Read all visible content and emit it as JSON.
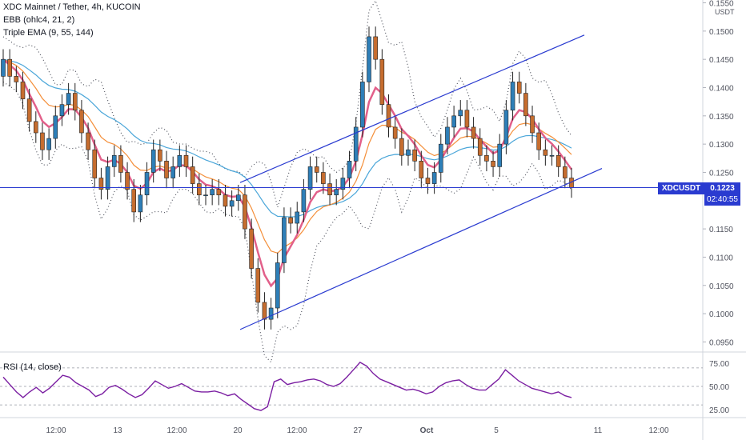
{
  "header": {
    "title": "XDC Mainnet / Tether, 4h, KUCOIN",
    "indicator_ebb": "EBB (ohlc4, 21, 2)",
    "indicator_ema": "Triple EMA (9, 55, 144)",
    "rsi_label": "RSI (14, close)"
  },
  "price_axis": {
    "currency": "USDT",
    "ticks": [
      "0.1550",
      "0.1500",
      "0.1450",
      "0.1400",
      "0.1350",
      "0.1300",
      "0.1250",
      "0.1150",
      "0.1100",
      "0.1050",
      "0.1000",
      "0.0950"
    ]
  },
  "rsi_axis": {
    "ticks": [
      "75.00",
      "50.00",
      "25.00"
    ]
  },
  "time_axis": {
    "ticks": [
      "12:00",
      "13",
      "12:00",
      "20",
      "12:00",
      "27",
      "Oct",
      "5",
      "11",
      "12:00"
    ]
  },
  "symbol_badge": {
    "label": "XDCUSDT",
    "price": "0.1223",
    "countdown": "02:40:55"
  },
  "colors": {
    "up": "#2e7fb8",
    "down": "#c66d2f",
    "ema_fast": "#e2608a",
    "ema_mid": "#f48f3a",
    "ema_slow": "#4aa6d9",
    "channel": "#2a3bd0",
    "rsi": "#7b1fa2",
    "badge": "#2a3bd0"
  },
  "chart_data": {
    "type": "candlestick",
    "title": "XDC Mainnet / Tether, 4h, KUCOIN",
    "current_price": 0.1223,
    "ylim": [
      0.0935,
      0.1555
    ],
    "closes": [
      0.145,
      0.142,
      0.141,
      0.138,
      0.134,
      0.132,
      0.129,
      0.131,
      0.135,
      0.137,
      0.139,
      0.136,
      0.132,
      0.129,
      0.124,
      0.122,
      0.126,
      0.128,
      0.125,
      0.122,
      0.118,
      0.121,
      0.125,
      0.129,
      0.127,
      0.124,
      0.126,
      0.128,
      0.126,
      0.123,
      0.121,
      0.121,
      0.122,
      0.121,
      0.119,
      0.12,
      0.121,
      0.115,
      0.108,
      0.102,
      0.099,
      0.101,
      0.109,
      0.117,
      0.116,
      0.118,
      0.122,
      0.126,
      0.125,
      0.123,
      0.121,
      0.122,
      0.124,
      0.127,
      0.133,
      0.141,
      0.149,
      0.145,
      0.137,
      0.133,
      0.131,
      0.128,
      0.129,
      0.127,
      0.124,
      0.123,
      0.125,
      0.13,
      0.133,
      0.135,
      0.136,
      0.133,
      0.131,
      0.128,
      0.127,
      0.126,
      0.13,
      0.136,
      0.141,
      0.139,
      0.135,
      0.132,
      0.129,
      0.128,
      0.128,
      0.126,
      0.124,
      0.1223
    ],
    "rsi_ylim": [
      18,
      82
    ],
    "rsi_levels": [
      70,
      50,
      30
    ],
    "rsi_values": [
      60,
      52,
      44,
      38,
      44,
      49,
      43,
      48,
      55,
      62,
      60,
      54,
      50,
      46,
      39,
      42,
      49,
      51,
      47,
      42,
      38,
      41,
      48,
      56,
      52,
      48,
      50,
      53,
      49,
      45,
      44,
      44,
      45,
      43,
      40,
      42,
      36,
      31,
      26,
      24,
      28,
      55,
      58,
      52,
      54,
      55,
      57,
      58,
      56,
      52,
      50,
      53,
      60,
      68,
      76,
      72,
      64,
      58,
      55,
      52,
      49,
      46,
      47,
      45,
      42,
      44,
      50,
      54,
      56,
      57,
      52,
      48,
      46,
      46,
      52,
      58,
      68,
      62,
      56,
      52,
      48,
      46,
      44,
      42,
      44,
      40,
      38
    ]
  }
}
